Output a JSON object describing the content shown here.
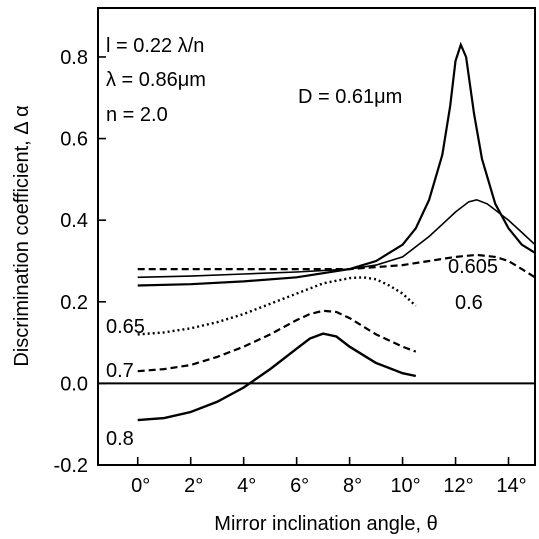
{
  "chart_data": {
    "type": "line",
    "xlabel": "Mirror inclination angle, θ",
    "ylabel": "Discrimination coefficient, Δ α",
    "xlim": [
      -1.5,
      15
    ],
    "ylim": [
      -0.2,
      0.92
    ],
    "x_ticks": [
      {
        "value": 0,
        "label": "0°"
      },
      {
        "value": 2,
        "label": "2°"
      },
      {
        "value": 4,
        "label": "4°"
      },
      {
        "value": 6,
        "label": "6°"
      },
      {
        "value": 8,
        "label": "8°"
      },
      {
        "value": 10,
        "label": "10°"
      },
      {
        "value": 12,
        "label": "12°"
      },
      {
        "value": 14,
        "label": "14°"
      }
    ],
    "y_ticks": [
      {
        "value": -0.2,
        "label": "-0.2"
      },
      {
        "value": 0.0,
        "label": "0.0"
      },
      {
        "value": 0.2,
        "label": "0.2"
      },
      {
        "value": 0.4,
        "label": "0.4"
      },
      {
        "value": 0.6,
        "label": "0.6"
      },
      {
        "value": 0.8,
        "label": "0.8"
      }
    ],
    "reference_line": {
      "y": 0.0
    },
    "parameters": [
      "l = 0.22 λ/n",
      "λ = 0.86μm",
      "n = 2.0"
    ],
    "series": [
      {
        "name": "D = 0.61μm",
        "style": "solid",
        "width": 2.2,
        "x": [
          0,
          2,
          4,
          6,
          8,
          9,
          10,
          10.5,
          11,
          11.5,
          11.8,
          12.0,
          12.2,
          12.4,
          12.7,
          13.0,
          13.5,
          14,
          14.5,
          15
        ],
        "y": [
          0.24,
          0.243,
          0.25,
          0.26,
          0.28,
          0.3,
          0.34,
          0.38,
          0.45,
          0.56,
          0.68,
          0.79,
          0.83,
          0.8,
          0.66,
          0.55,
          0.44,
          0.38,
          0.34,
          0.32
        ]
      },
      {
        "name": "0.605",
        "style": "solid",
        "width": 1.6,
        "x": [
          0,
          2,
          4,
          6,
          8,
          9,
          10,
          11,
          11.5,
          12,
          12.5,
          12.8,
          13.2,
          13.6,
          14,
          14.5,
          15
        ],
        "y": [
          0.26,
          0.263,
          0.268,
          0.273,
          0.28,
          0.29,
          0.31,
          0.36,
          0.39,
          0.42,
          0.445,
          0.45,
          0.44,
          0.42,
          0.4,
          0.37,
          0.34
        ]
      },
      {
        "name": "0.6",
        "style": "dashed",
        "width": 2.2,
        "x": [
          0,
          2,
          4,
          6,
          8,
          10,
          11,
          12,
          12.8,
          13.5,
          14,
          14.5,
          15
        ],
        "y": [
          0.28,
          0.28,
          0.28,
          0.28,
          0.28,
          0.29,
          0.3,
          0.31,
          0.315,
          0.31,
          0.3,
          0.28,
          0.26
        ]
      },
      {
        "name": "0.65",
        "style": "dotted",
        "width": 2.4,
        "x": [
          0,
          1,
          2,
          3,
          4,
          5,
          6,
          7,
          8,
          8.5,
          9,
          9.5,
          10,
          10.5
        ],
        "y": [
          0.12,
          0.125,
          0.135,
          0.15,
          0.17,
          0.195,
          0.22,
          0.245,
          0.258,
          0.26,
          0.255,
          0.24,
          0.22,
          0.19
        ]
      },
      {
        "name": "0.7",
        "style": "dashed",
        "width": 2.2,
        "x": [
          0,
          1,
          2,
          3,
          4,
          5,
          6,
          6.5,
          7,
          7.5,
          8,
          9,
          10,
          10.5
        ],
        "y": [
          0.03,
          0.035,
          0.045,
          0.065,
          0.09,
          0.12,
          0.155,
          0.17,
          0.178,
          0.175,
          0.16,
          0.12,
          0.09,
          0.078
        ]
      },
      {
        "name": "0.8",
        "style": "solid",
        "width": 2.4,
        "x": [
          0,
          1,
          2,
          3,
          4,
          5,
          6,
          6.5,
          7,
          7.5,
          8,
          9,
          10,
          10.5
        ],
        "y": [
          -0.09,
          -0.085,
          -0.07,
          -0.045,
          -0.01,
          0.035,
          0.085,
          0.11,
          0.122,
          0.115,
          0.09,
          0.05,
          0.025,
          0.018
        ]
      }
    ]
  }
}
